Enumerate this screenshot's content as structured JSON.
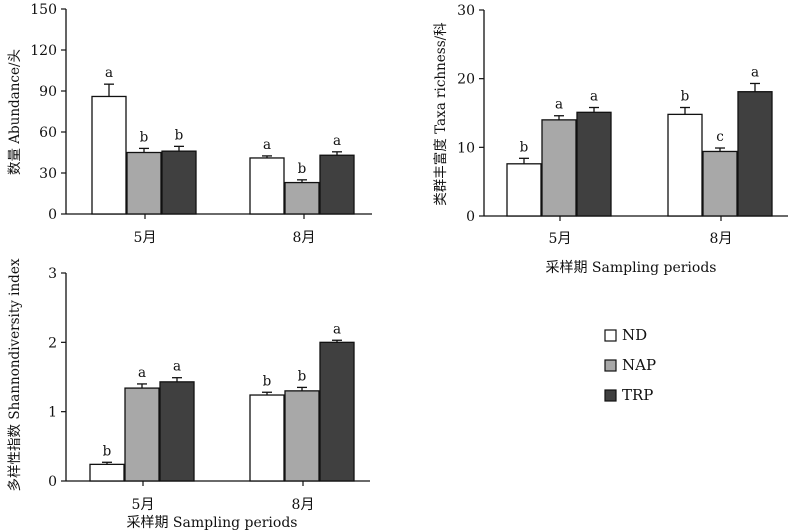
{
  "chart_data": [
    {
      "type": "bar",
      "ylabel": "数量 Abundance/头",
      "xlabel": "",
      "ylim": [
        0,
        150
      ],
      "yticks": [
        "0",
        "30",
        "60",
        "90",
        "120",
        "150"
      ],
      "categories": [
        "5月",
        "8月"
      ],
      "series": [
        {
          "name": "ND",
          "values": [
            86,
            41
          ],
          "errors": [
            9,
            1.5
          ],
          "letters": [
            "a",
            "a"
          ]
        },
        {
          "name": "NAP",
          "values": [
            45,
            23
          ],
          "errors": [
            3,
            2
          ],
          "letters": [
            "b",
            "b"
          ]
        },
        {
          "name": "TRP",
          "values": [
            46,
            43
          ],
          "errors": [
            3.5,
            2.5
          ],
          "letters": [
            "b",
            "a"
          ]
        }
      ]
    },
    {
      "type": "bar",
      "ylabel": "类群丰富度 Taxa richness/科",
      "xlabel": "采样期 Sampling periods",
      "ylim": [
        0,
        30
      ],
      "yticks": [
        "0",
        "10",
        "20",
        "30"
      ],
      "categories": [
        "5月",
        "8月"
      ],
      "series": [
        {
          "name": "ND",
          "values": [
            7.6,
            14.8
          ],
          "errors": [
            0.8,
            1.0
          ],
          "letters": [
            "b",
            "b"
          ]
        },
        {
          "name": "NAP",
          "values": [
            14,
            9.4
          ],
          "errors": [
            0.6,
            0.5
          ],
          "letters": [
            "a",
            "c"
          ]
        },
        {
          "name": "TRP",
          "values": [
            15.1,
            18.1
          ],
          "errors": [
            0.7,
            1.2
          ],
          "letters": [
            "a",
            "a"
          ]
        }
      ]
    },
    {
      "type": "bar",
      "ylabel": "多样性指数 Shannondiversity index",
      "xlabel": "采样期 Sampling periods",
      "ylim": [
        0,
        3
      ],
      "yticks": [
        "0",
        "1",
        "2",
        "3"
      ],
      "categories": [
        "5月",
        "8月"
      ],
      "series": [
        {
          "name": "ND",
          "values": [
            0.24,
            1.24
          ],
          "errors": [
            0.03,
            0.04
          ],
          "letters": [
            "b",
            "b"
          ]
        },
        {
          "name": "NAP",
          "values": [
            1.34,
            1.3
          ],
          "errors": [
            0.06,
            0.05
          ],
          "letters": [
            "a",
            "b"
          ]
        },
        {
          "name": "TRP",
          "values": [
            1.43,
            2.0
          ],
          "errors": [
            0.06,
            0.03
          ],
          "letters": [
            "a",
            "a"
          ]
        }
      ]
    }
  ],
  "legend": {
    "placement": "right-bottom",
    "items": [
      {
        "label": "ND",
        "color": "#ffffff"
      },
      {
        "label": "NAP",
        "color": "#a8a8a8"
      },
      {
        "label": "TRP",
        "color": "#404040"
      }
    ]
  },
  "colors": {
    "ND": "#ffffff",
    "NAP": "#a8a8a8",
    "TRP": "#404040",
    "axis": "#111111"
  }
}
